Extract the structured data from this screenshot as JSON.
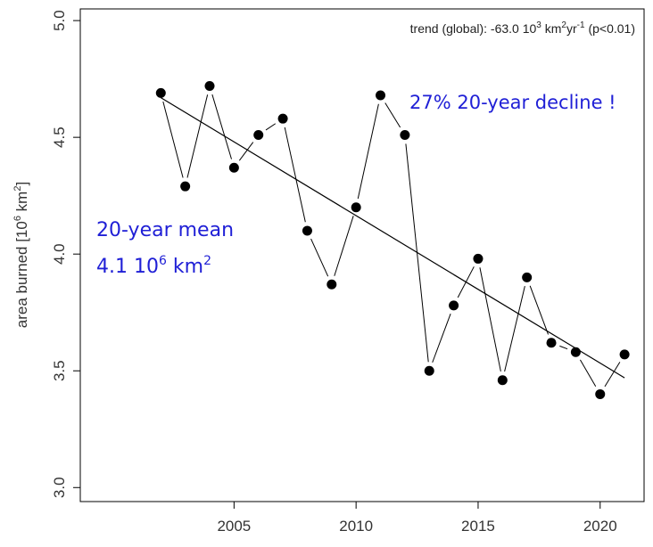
{
  "chart_data": {
    "type": "line",
    "x": [
      2002,
      2003,
      2004,
      2005,
      2006,
      2007,
      2008,
      2009,
      2010,
      2011,
      2012,
      2013,
      2014,
      2015,
      2016,
      2017,
      2018,
      2019,
      2020,
      2021
    ],
    "series": [
      {
        "values": [
          4.69,
          4.29,
          4.72,
          4.37,
          4.51,
          4.58,
          4.1,
          3.87,
          4.2,
          4.68,
          4.51,
          3.5,
          3.78,
          3.98,
          3.46,
          3.9,
          3.62,
          3.58,
          3.4,
          3.57
        ],
        "color": "#000000",
        "marker": "filled-circle"
      }
    ],
    "trend": {
      "start": [
        2002,
        4.67
      ],
      "end": [
        2021,
        3.47
      ]
    },
    "xlim": [
      1998.7,
      2021.8
    ],
    "ylim": [
      2.94,
      5.05
    ],
    "xticks": [
      "2005",
      "2010",
      "2015",
      "2020"
    ],
    "yticks": [
      "3.0",
      "3.5",
      "4.0",
      "4.5",
      "5.0"
    ],
    "ylabel": {
      "prefix": "area burned [10",
      "sup1": "6",
      "mid": " km",
      "sup2": "2",
      "suffix": "]"
    },
    "grid": false
  },
  "annotations": {
    "trend_text": {
      "a": "trend (global): -63.0 10",
      "sup1": "3",
      "b": " km",
      "sup2": "2",
      "c": "yr",
      "sup3": "-1",
      "d": " (p<0.01)"
    },
    "decline": "27% 20-year decline !",
    "mean_line1": "20-year mean",
    "mean_line2": {
      "a": "4.1 10",
      "sup": "6",
      "b": " km",
      "sup2": "2"
    }
  },
  "colors": {
    "annotation_blue": "#1f1fd6",
    "plot_black": "#000000"
  }
}
